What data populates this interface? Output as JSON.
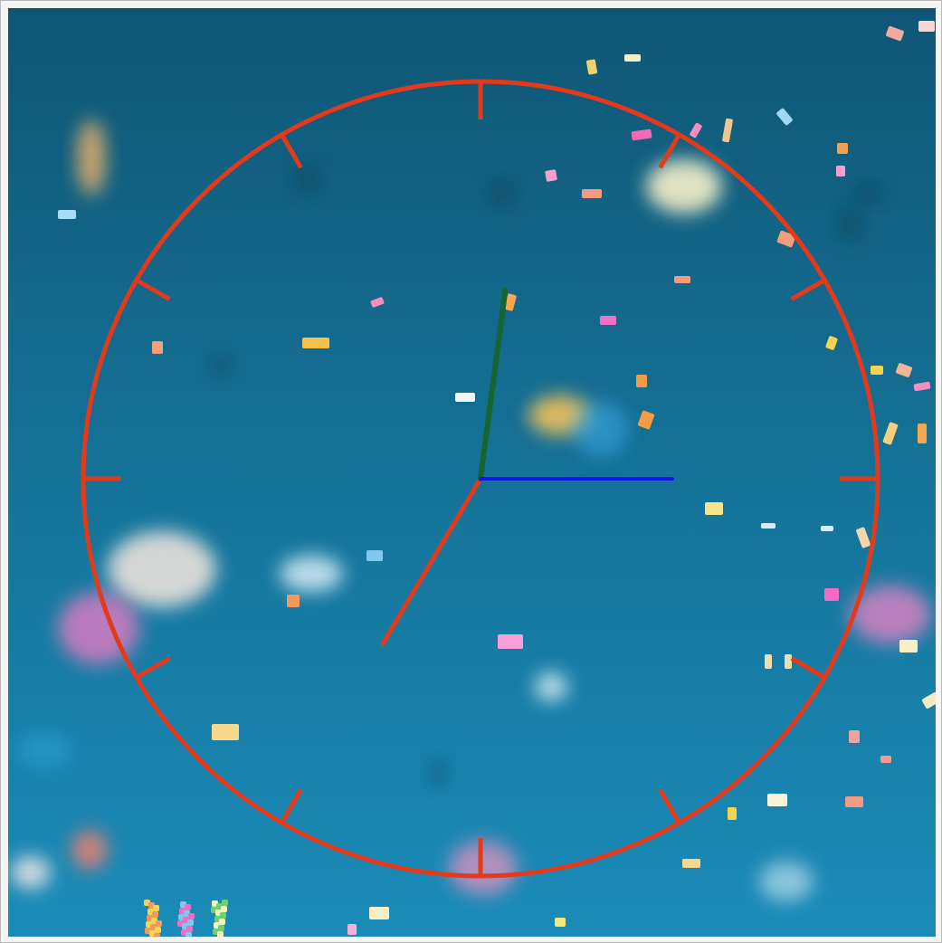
{
  "clock": {
    "time": {
      "hours": 7,
      "minutes": 1,
      "seconds": 15
    },
    "colors": {
      "dial": "#e43a1c",
      "hour_hand": "#e43a1c",
      "minute_hand": "#15652e",
      "second_hand": "#1515e6",
      "background_top": "#0f5675",
      "background_bottom": "#1a8bb8"
    },
    "tick_count": 12
  },
  "background": {
    "description_icon": "confetti-background"
  }
}
